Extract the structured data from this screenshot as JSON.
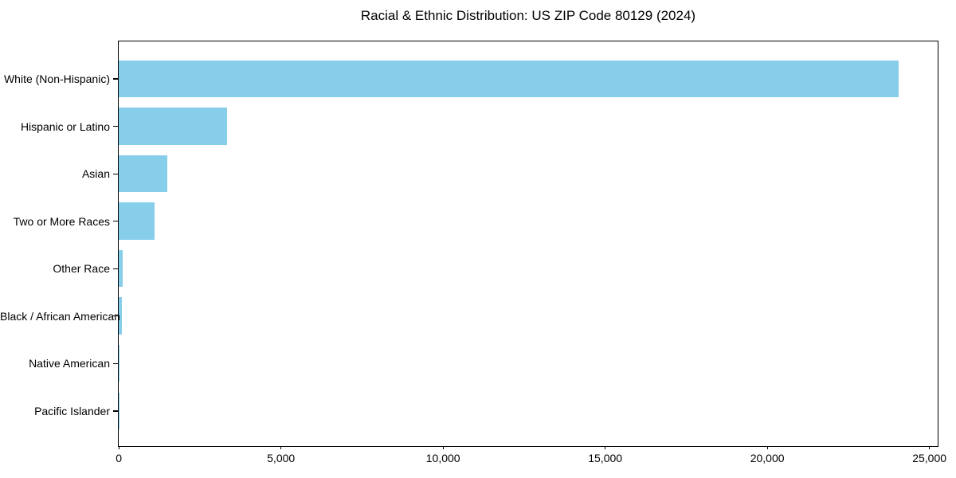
{
  "title": "Racial & Ethnic Distribution: US ZIP Code 80129 (2024)",
  "colors": {
    "bar": "#87CEEB",
    "spine": "#000000",
    "text": "#000000",
    "background": "#FFFFFF"
  },
  "chart_data": {
    "type": "bar",
    "orientation": "horizontal",
    "title": "Racial & Ethnic Distribution: US ZIP Code 80129 (2024)",
    "categories": [
      "White (Non-Hispanic)",
      "Hispanic or Latino",
      "Asian",
      "Two or More Races",
      "Other Race",
      "Black / African American",
      "Native American",
      "Pacific Islander"
    ],
    "values": [
      24060,
      3340,
      1500,
      1100,
      130,
      110,
      25,
      10
    ],
    "bar_color": "#87CEEB",
    "xlabel": "",
    "ylabel": "",
    "xlim": [
      0,
      25250
    ],
    "x_ticks": [
      0,
      5000,
      10000,
      15000,
      20000,
      25000
    ],
    "x_tick_labels": [
      "0",
      "5,000",
      "10,000",
      "15,000",
      "20,000",
      "25,000"
    ],
    "grid": false,
    "legend": null
  }
}
